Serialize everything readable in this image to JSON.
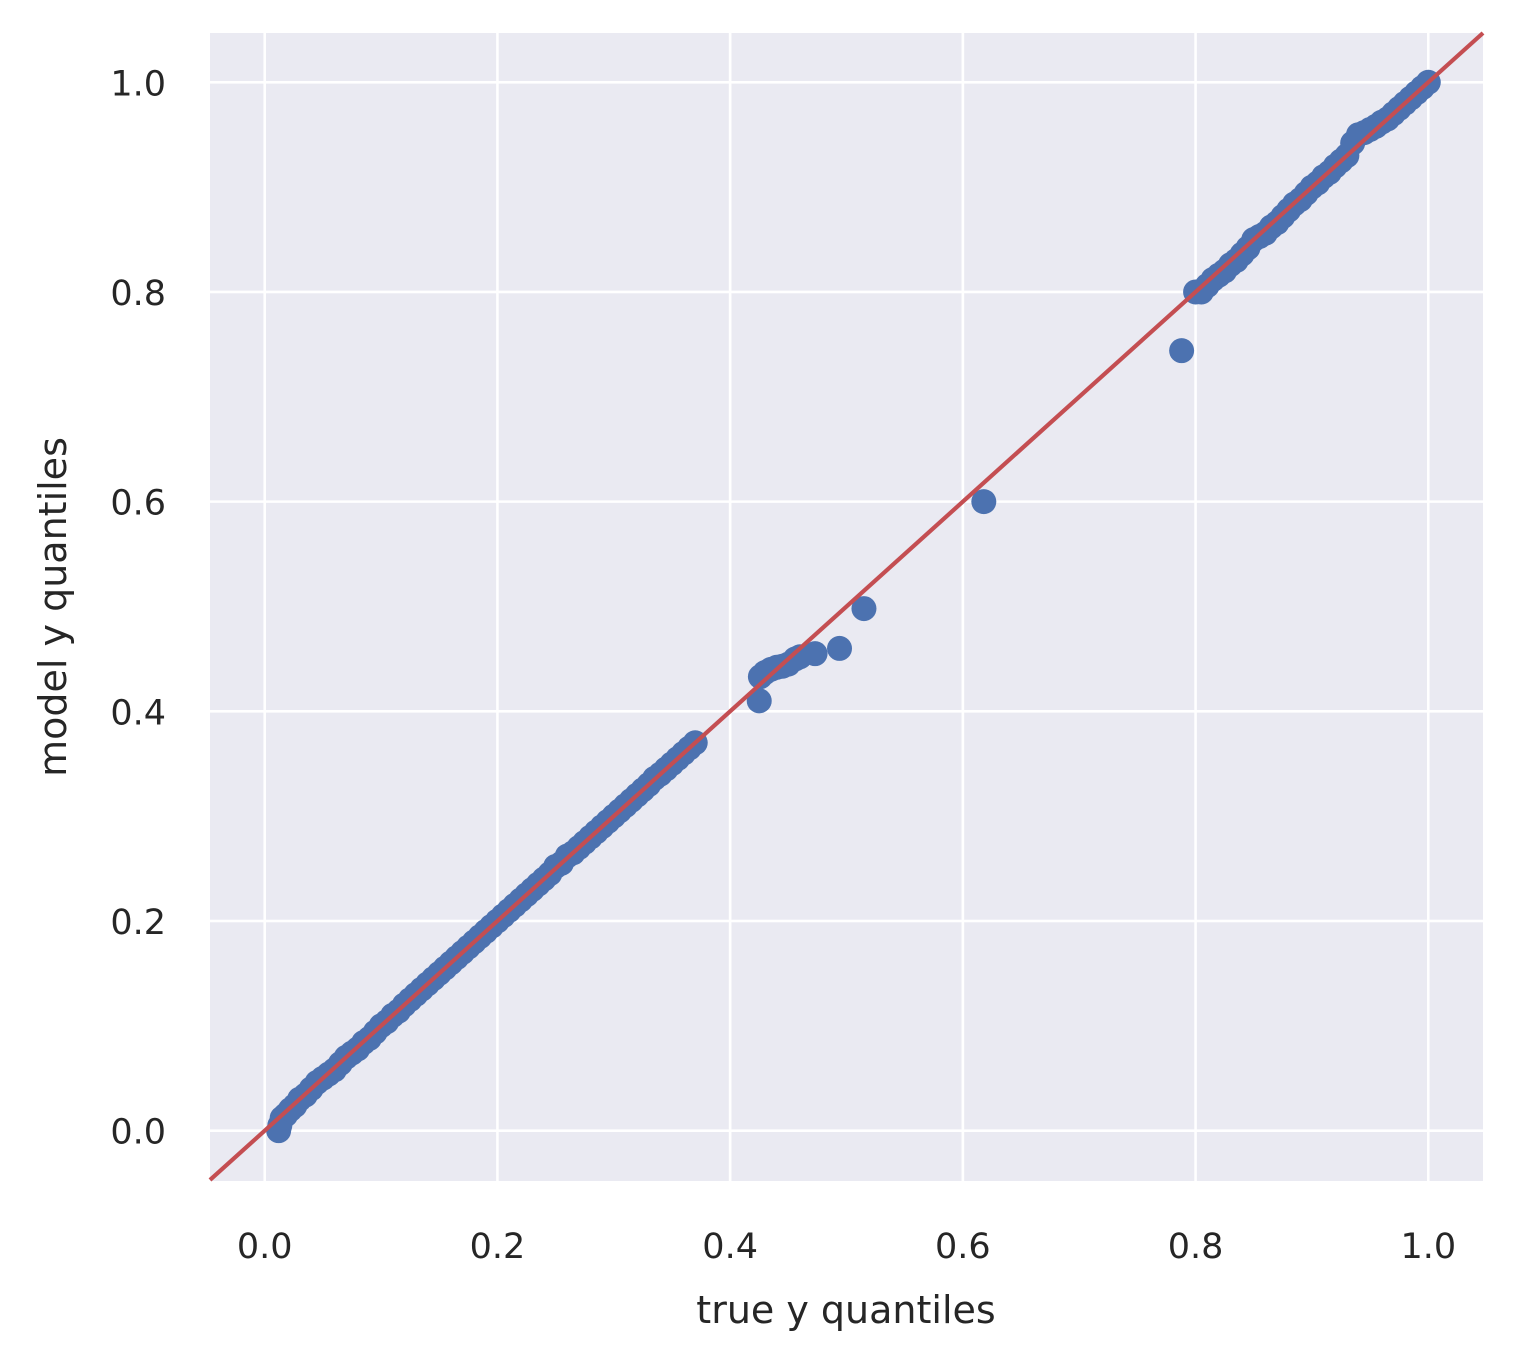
{
  "chart_data": {
    "type": "scatter",
    "title": "",
    "xlabel": "true y quantiles",
    "ylabel": "model y quantiles",
    "xlim": [
      -0.047,
      1.047
    ],
    "ylim": [
      -0.048,
      1.047
    ],
    "xticks": [
      0.0,
      0.2,
      0.4,
      0.6,
      0.8,
      1.0
    ],
    "yticks": [
      0.0,
      0.2,
      0.4,
      0.6,
      0.8,
      1.0
    ],
    "tick_labels": [
      "0.0",
      "0.2",
      "0.4",
      "0.6",
      "0.8",
      "1.0"
    ],
    "grid": true,
    "reference_line": {
      "x": [
        -0.047,
        1.047
      ],
      "y": [
        -0.047,
        1.047
      ],
      "color": "#c44e52"
    },
    "series": [
      {
        "color": "#4c72b0",
        "points": [
          [
            0.012,
            0.0
          ],
          [
            0.013,
            0.005
          ],
          [
            0.015,
            0.012
          ],
          [
            0.018,
            0.015
          ],
          [
            0.022,
            0.02
          ],
          [
            0.026,
            0.024
          ],
          [
            0.03,
            0.03
          ],
          [
            0.035,
            0.034
          ],
          [
            0.04,
            0.04
          ],
          [
            0.045,
            0.046
          ],
          [
            0.05,
            0.05
          ],
          [
            0.055,
            0.054
          ],
          [
            0.06,
            0.058
          ],
          [
            0.065,
            0.064
          ],
          [
            0.07,
            0.07
          ],
          [
            0.075,
            0.074
          ],
          [
            0.08,
            0.078
          ],
          [
            0.085,
            0.084
          ],
          [
            0.09,
            0.088
          ],
          [
            0.095,
            0.094
          ],
          [
            0.1,
            0.1
          ],
          [
            0.105,
            0.104
          ],
          [
            0.11,
            0.11
          ],
          [
            0.115,
            0.114
          ],
          [
            0.12,
            0.12
          ],
          [
            0.125,
            0.125
          ],
          [
            0.13,
            0.13
          ],
          [
            0.135,
            0.135
          ],
          [
            0.14,
            0.14
          ],
          [
            0.145,
            0.145
          ],
          [
            0.15,
            0.15
          ],
          [
            0.155,
            0.155
          ],
          [
            0.16,
            0.16
          ],
          [
            0.165,
            0.165
          ],
          [
            0.17,
            0.17
          ],
          [
            0.175,
            0.175
          ],
          [
            0.18,
            0.18
          ],
          [
            0.185,
            0.185
          ],
          [
            0.19,
            0.19
          ],
          [
            0.195,
            0.195
          ],
          [
            0.2,
            0.2
          ],
          [
            0.205,
            0.205
          ],
          [
            0.21,
            0.21
          ],
          [
            0.215,
            0.215
          ],
          [
            0.22,
            0.22
          ],
          [
            0.225,
            0.225
          ],
          [
            0.23,
            0.23
          ],
          [
            0.235,
            0.235
          ],
          [
            0.24,
            0.24
          ],
          [
            0.245,
            0.245
          ],
          [
            0.25,
            0.252
          ],
          [
            0.255,
            0.255
          ],
          [
            0.26,
            0.262
          ],
          [
            0.265,
            0.265
          ],
          [
            0.27,
            0.27
          ],
          [
            0.275,
            0.275
          ],
          [
            0.28,
            0.28
          ],
          [
            0.285,
            0.285
          ],
          [
            0.29,
            0.29
          ],
          [
            0.295,
            0.295
          ],
          [
            0.3,
            0.3
          ],
          [
            0.305,
            0.305
          ],
          [
            0.31,
            0.31
          ],
          [
            0.315,
            0.315
          ],
          [
            0.32,
            0.32
          ],
          [
            0.325,
            0.325
          ],
          [
            0.33,
            0.33
          ],
          [
            0.335,
            0.336
          ],
          [
            0.34,
            0.34
          ],
          [
            0.345,
            0.345
          ],
          [
            0.35,
            0.35
          ],
          [
            0.355,
            0.355
          ],
          [
            0.36,
            0.36
          ],
          [
            0.365,
            0.365
          ],
          [
            0.37,
            0.37
          ],
          [
            0.425,
            0.41
          ],
          [
            0.426,
            0.433
          ],
          [
            0.43,
            0.437
          ],
          [
            0.435,
            0.44
          ],
          [
            0.44,
            0.442
          ],
          [
            0.445,
            0.443
          ],
          [
            0.45,
            0.445
          ],
          [
            0.456,
            0.45
          ],
          [
            0.46,
            0.452
          ],
          [
            0.473,
            0.455
          ],
          [
            0.494,
            0.46
          ],
          [
            0.515,
            0.498
          ],
          [
            0.618,
            0.6
          ],
          [
            0.788,
            0.744
          ],
          [
            0.8,
            0.8
          ],
          [
            0.805,
            0.8
          ],
          [
            0.81,
            0.806
          ],
          [
            0.815,
            0.812
          ],
          [
            0.82,
            0.816
          ],
          [
            0.825,
            0.82
          ],
          [
            0.83,
            0.826
          ],
          [
            0.835,
            0.83
          ],
          [
            0.84,
            0.836
          ],
          [
            0.845,
            0.842
          ],
          [
            0.85,
            0.85
          ],
          [
            0.855,
            0.853
          ],
          [
            0.86,
            0.856
          ],
          [
            0.865,
            0.862
          ],
          [
            0.87,
            0.866
          ],
          [
            0.875,
            0.872
          ],
          [
            0.88,
            0.878
          ],
          [
            0.885,
            0.884
          ],
          [
            0.89,
            0.888
          ],
          [
            0.895,
            0.894
          ],
          [
            0.9,
            0.9
          ],
          [
            0.905,
            0.904
          ],
          [
            0.91,
            0.91
          ],
          [
            0.915,
            0.914
          ],
          [
            0.92,
            0.92
          ],
          [
            0.925,
            0.925
          ],
          [
            0.93,
            0.93
          ],
          [
            0.935,
            0.942
          ],
          [
            0.94,
            0.95
          ],
          [
            0.945,
            0.952
          ],
          [
            0.95,
            0.955
          ],
          [
            0.955,
            0.958
          ],
          [
            0.96,
            0.962
          ],
          [
            0.965,
            0.965
          ],
          [
            0.97,
            0.97
          ],
          [
            0.975,
            0.975
          ],
          [
            0.98,
            0.98
          ],
          [
            0.985,
            0.985
          ],
          [
            0.99,
            0.99
          ],
          [
            0.995,
            0.995
          ],
          [
            1.0,
            1.0
          ]
        ]
      }
    ]
  },
  "colors": {
    "plot_background": "#eaeaf2",
    "grid": "#ffffff",
    "points": "#4c72b0",
    "reference_line": "#c44e52",
    "text": "#262626"
  }
}
